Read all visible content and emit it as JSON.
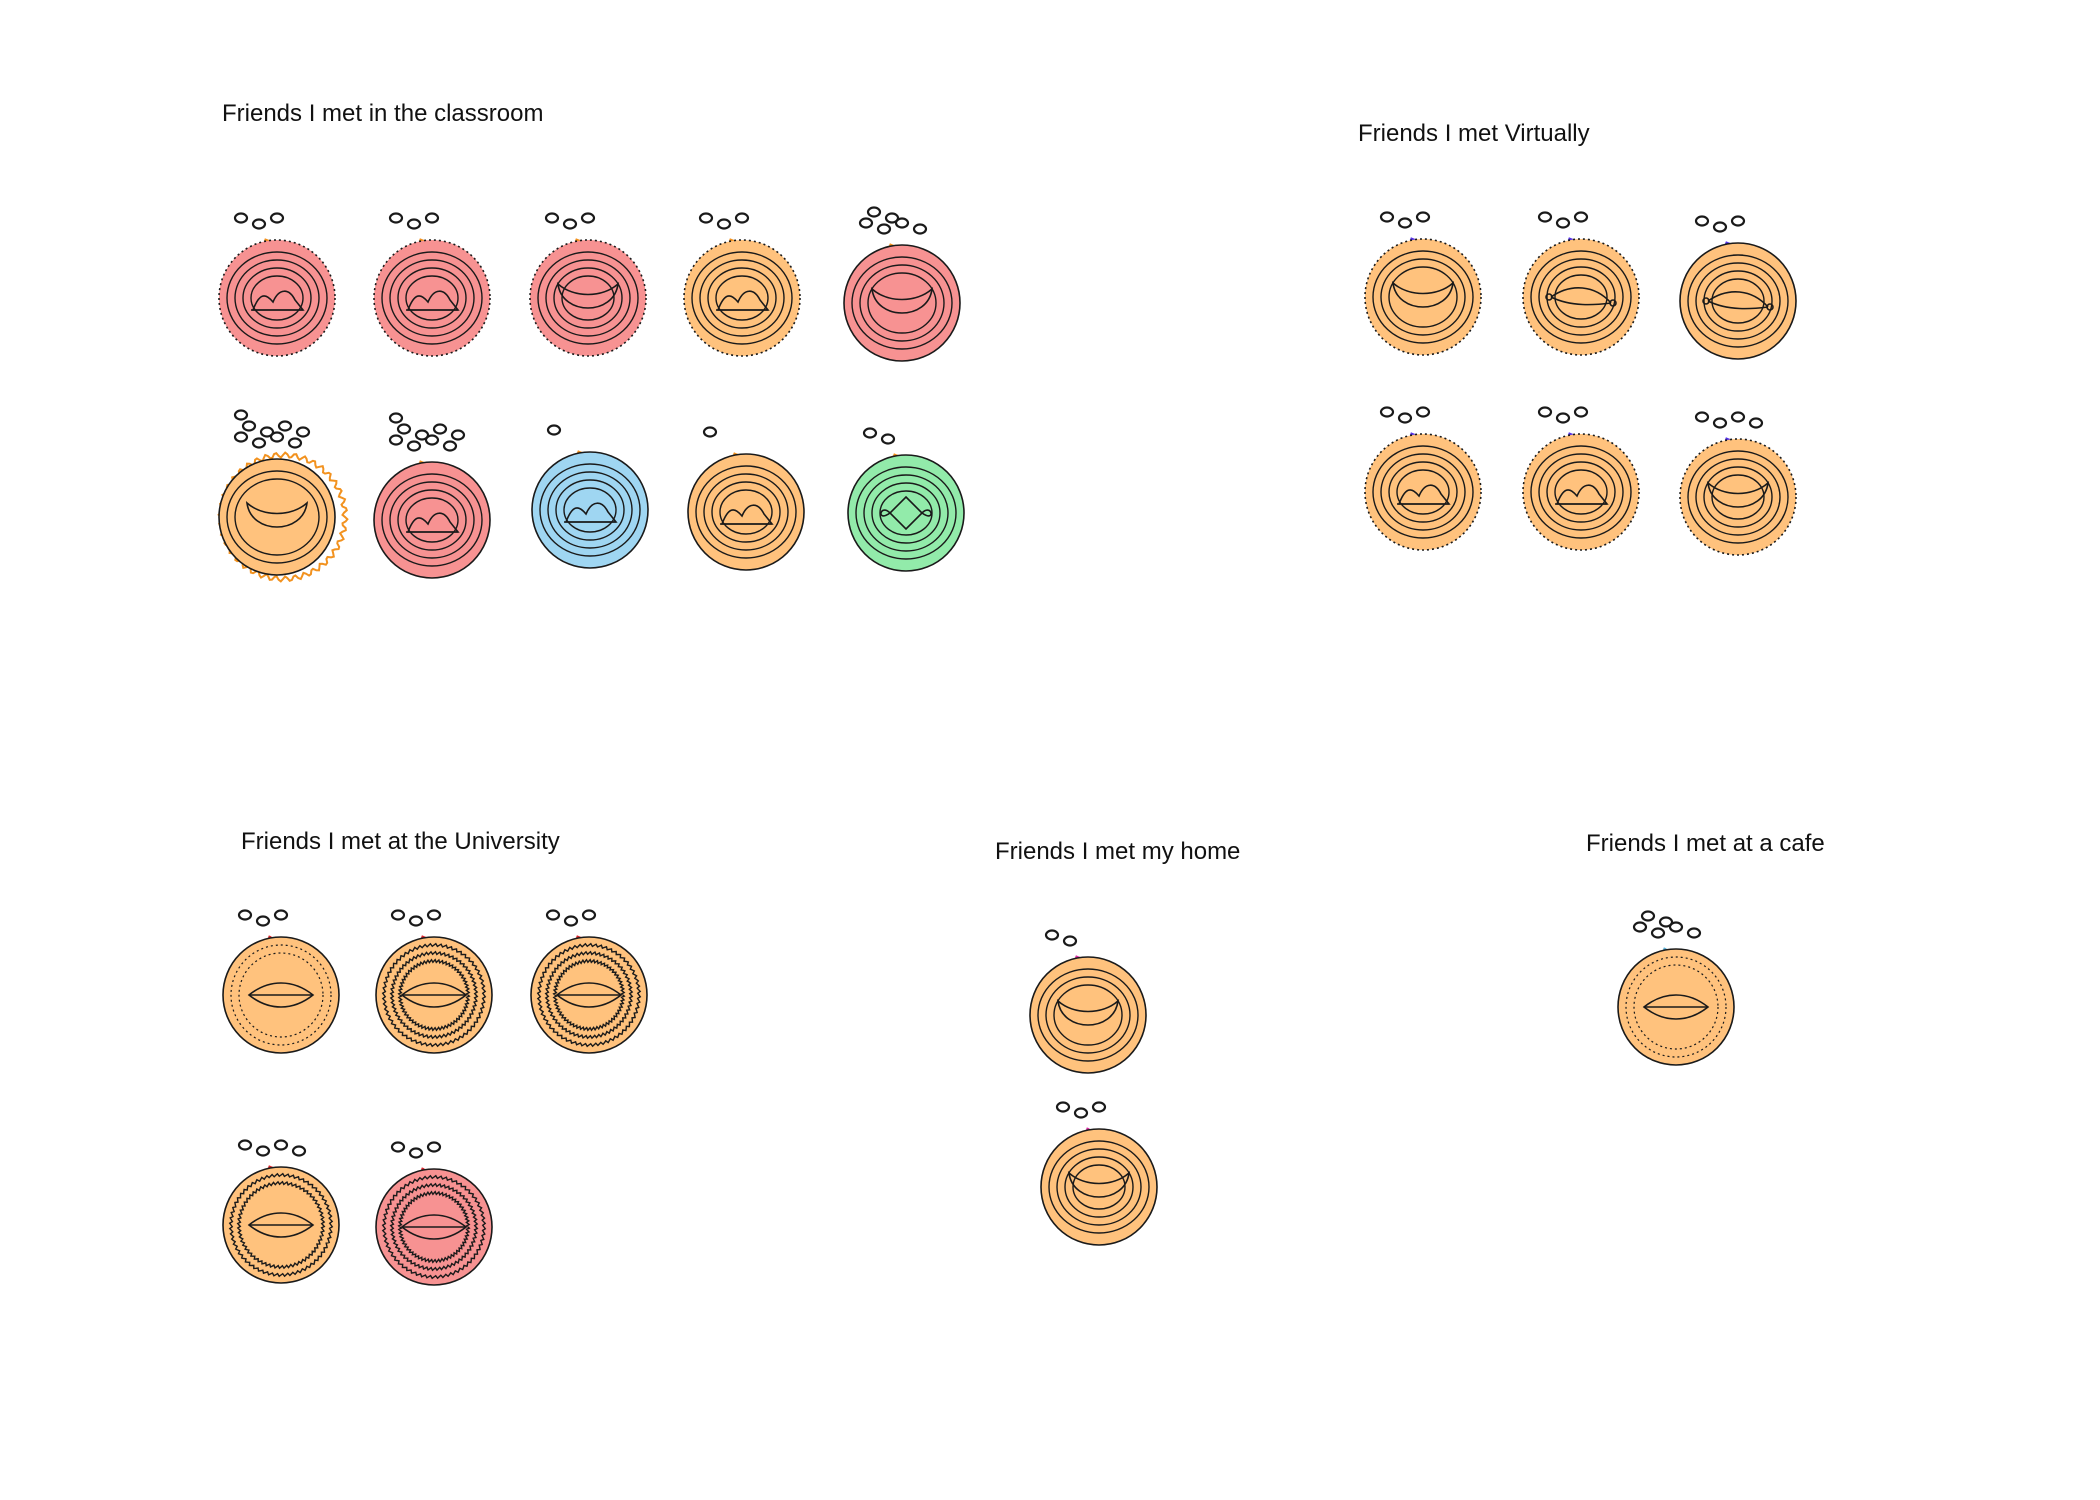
{
  "groups": {
    "classroom": {
      "title": "Friends I met in the classroom",
      "friends": [
        {
          "fill": "#f79292",
          "ring": "#f2921f",
          "ring_style": "solid",
          "dots": 3,
          "rings": 4,
          "face": "fish",
          "border": "dotted"
        },
        {
          "fill": "#f79292",
          "ring": "#f2921f",
          "ring_style": "solid",
          "dots": 3,
          "rings": 4,
          "face": "fish",
          "border": "dotted"
        },
        {
          "fill": "#f79292",
          "ring": "#f2921f",
          "ring_style": "solid",
          "dots": 3,
          "rings": 4,
          "face": "bowl",
          "border": "dotted"
        },
        {
          "fill": "#ffc27d",
          "ring": "#f2921f",
          "ring_style": "solid",
          "dots": 3,
          "rings": 4,
          "face": "fish",
          "border": "dotted"
        },
        {
          "fill": "#f79292",
          "ring": "#f2921f",
          "ring_style": "solid",
          "dots": 6,
          "rings": 3,
          "face": "bowl",
          "border": "solid"
        },
        {
          "fill": "#ffc27d",
          "ring": "#f2921f",
          "ring_style": "wavy",
          "dots": 9,
          "rings": 2,
          "face": "bowl",
          "border": "solid"
        },
        {
          "fill": "#f79292",
          "ring": "#f2921f",
          "ring_style": "solid",
          "dots": 9,
          "rings": 4,
          "face": "fish",
          "border": "solid"
        },
        {
          "fill": "#9fd6f2",
          "ring": "#f2921f",
          "ring_style": "solid",
          "dots": 1,
          "rings": 4,
          "face": "fish",
          "border": "solid"
        },
        {
          "fill": "#ffc27d",
          "ring": "#f2921f",
          "ring_style": "solid",
          "dots": 1,
          "rings": 4,
          "face": "fish",
          "border": "solid"
        },
        {
          "fill": "#92ebaa",
          "ring": "#f2921f",
          "ring_style": "solid",
          "dots": 2,
          "rings": 4,
          "face": "diamond",
          "border": "solid"
        }
      ]
    },
    "virtual": {
      "title": "Friends I met Virtually",
      "friends": [
        {
          "fill": "#ffc27d",
          "ring": "#5533e6",
          "ring_style": "solid",
          "dots": 3,
          "rings": 3,
          "face": "bowl",
          "border": "dotted"
        },
        {
          "fill": "#ffc27d",
          "ring": "#5533e6",
          "ring_style": "solid",
          "dots": 3,
          "rings": 4,
          "face": "fishline",
          "border": "dotted"
        },
        {
          "fill": "#ffc27d",
          "ring": "#5533e6",
          "ring_style": "dashed",
          "dots": 3,
          "rings": 4,
          "face": "fishline",
          "border": "solid"
        },
        {
          "fill": "#ffc27d",
          "ring": "#5533e6",
          "ring_style": "solid",
          "dots": 3,
          "rings": 4,
          "face": "fish",
          "border": "dotted"
        },
        {
          "fill": "#ffc27d",
          "ring": "#5533e6",
          "ring_style": "solid",
          "dots": 3,
          "rings": 4,
          "face": "fish",
          "border": "dotted"
        },
        {
          "fill": "#ffc27d",
          "ring": "#5533e6",
          "ring_style": "solid",
          "dots": 4,
          "rings": 4,
          "face": "bowl",
          "border": "dotted"
        }
      ]
    },
    "university": {
      "title": "Friends I met at the University",
      "friends": [
        {
          "fill": "#ffc27d",
          "ring": "#d9262e",
          "ring_style": "dotted",
          "dots": 3,
          "rings": 2,
          "face": "eye",
          "border": "solid"
        },
        {
          "fill": "#ffc27d",
          "ring": "#d9262e",
          "ring_style": "solid",
          "dots": 3,
          "rings": 3,
          "face": "eyewavy",
          "border": "solid"
        },
        {
          "fill": "#ffc27d",
          "ring": "#d9262e",
          "ring_style": "solid",
          "dots": 3,
          "rings": 3,
          "face": "wavy",
          "border": "solid"
        },
        {
          "fill": "#ffc27d",
          "ring": "#d9262e",
          "ring_style": "solid",
          "dots": 4,
          "rings": 2,
          "face": "eyewavy",
          "border": "solid"
        },
        {
          "fill": "#f79292",
          "ring": "#d9262e",
          "ring_style": "dotted",
          "dots": 3,
          "rings": 3,
          "face": "eyewavy",
          "border": "solid"
        }
      ]
    },
    "home": {
      "title": "Friends I met my home",
      "friends": [
        {
          "fill": "#ffc27d",
          "ring": "#d92ea6",
          "ring_style": "solid",
          "dots": 2,
          "rings": 3,
          "face": "bowl",
          "border": "solid"
        },
        {
          "fill": "#ffc27d",
          "ring": "#d92ea6",
          "ring_style": "dotted",
          "dots": 3,
          "rings": 4,
          "face": "bowl",
          "border": "solid"
        }
      ]
    },
    "cafe": {
      "title": "Friends I met at a cafe",
      "friends": [
        {
          "fill": "#ffc27d",
          "ring": "#5bb0d6",
          "ring_style": "dotted",
          "dots": 6,
          "rings": 2,
          "face": "eye",
          "border": "solid"
        }
      ]
    }
  },
  "colors": {
    "outline": "#1a1a1a",
    "background": "#ffffff"
  }
}
